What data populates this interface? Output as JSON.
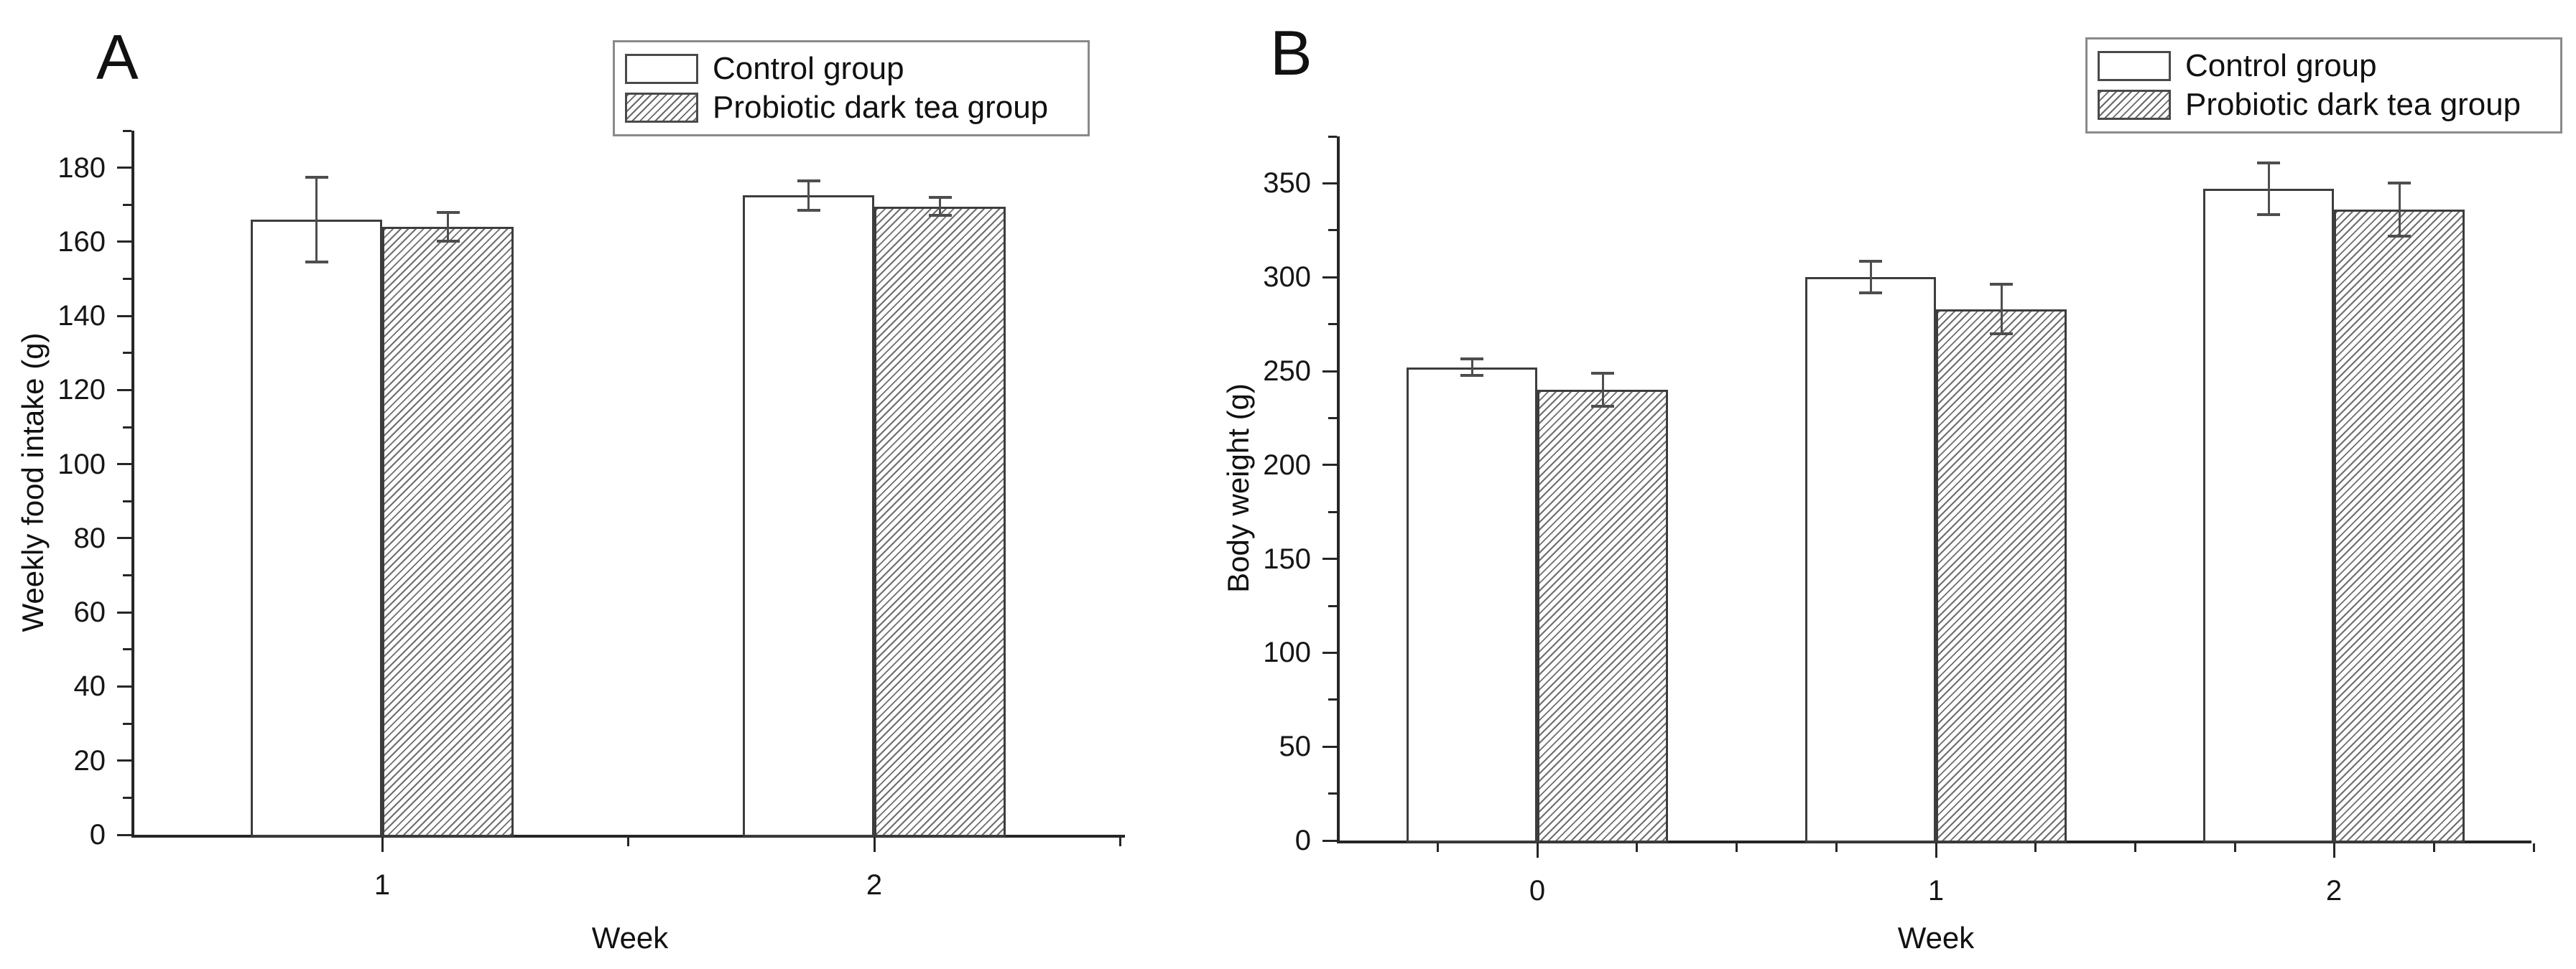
{
  "figure": {
    "background": "#ffffff",
    "axis_color": "#262626",
    "bar_border_color": "#3d3d3d",
    "error_bar_color": "#4e4e4e",
    "hatch_line_color": "#6e6e6e"
  },
  "legend": {
    "items": [
      {
        "label": "Control group",
        "swatch": "white-solid"
      },
      {
        "label": "Probiotic dark tea group",
        "swatch": "diagonal-hatch"
      }
    ]
  },
  "chart_data": [
    {
      "type": "bar",
      "panel_label": "A",
      "title": "",
      "xlabel": "Week",
      "ylabel": "Weekly food intake (g)",
      "categories": [
        "1",
        "2"
      ],
      "series": [
        {
          "name": "Control group",
          "style": "white-solid",
          "values": [
            166,
            172.5
          ],
          "errors": [
            11.5,
            4
          ]
        },
        {
          "name": "Probiotic dark tea group",
          "style": "diagonal-hatch",
          "values": [
            164,
            169.5
          ],
          "errors": [
            4,
            2.5
          ]
        }
      ],
      "ylim": [
        0,
        190
      ],
      "yticks": [
        0,
        20,
        40,
        60,
        80,
        100,
        120,
        140,
        160,
        180
      ],
      "y_minor_step": 10,
      "grid": false,
      "legend_position": "top-right-outside"
    },
    {
      "type": "bar",
      "panel_label": "B",
      "title": "",
      "xlabel": "Week",
      "ylabel": "Body weight (g)",
      "categories": [
        "0",
        "1",
        "2"
      ],
      "series": [
        {
          "name": "Control group",
          "style": "white-solid",
          "values": [
            252,
            300,
            347
          ],
          "errors": [
            4.5,
            8.5,
            14
          ]
        },
        {
          "name": "Probiotic dark tea group",
          "style": "diagonal-hatch",
          "values": [
            240,
            283,
            336
          ],
          "errors": [
            9,
            13.5,
            14.5
          ]
        }
      ],
      "ylim": [
        0,
        375
      ],
      "yticks": [
        0,
        50,
        100,
        150,
        200,
        250,
        300,
        350
      ],
      "y_minor_step": 25,
      "grid": false,
      "legend_position": "top-right-outside"
    }
  ]
}
